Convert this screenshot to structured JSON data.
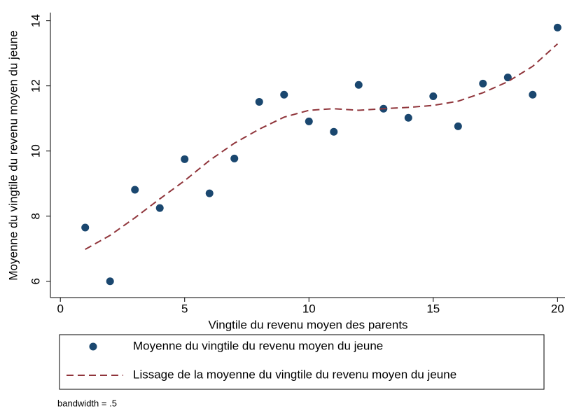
{
  "chart_data": {
    "type": "scatter",
    "xlabel": "Vingtile du revenu moyen des parents",
    "ylabel": "Moyenne du vingtile du revenu moyen du jeune",
    "note": "bandwidth = .5",
    "x": [
      1,
      2,
      3,
      4,
      5,
      6,
      7,
      8,
      9,
      10,
      11,
      12,
      13,
      14,
      15,
      16,
      17,
      18,
      19,
      20
    ],
    "series": [
      {
        "name": "Moyenne du vingtile du revenu moyen du jeune",
        "color": "#1a476f",
        "mode": "markers",
        "values": [
          7.65,
          6.0,
          8.81,
          8.25,
          9.75,
          8.7,
          9.77,
          11.51,
          11.73,
          10.91,
          10.59,
          12.03,
          11.3,
          11.02,
          11.68,
          10.76,
          12.07,
          12.26,
          11.73,
          13.79
        ]
      },
      {
        "name": "Lissage de la moyenne du vingtile du revenu moyen du jeune",
        "color": "#90353b",
        "mode": "dashed-line",
        "values": [
          6.98,
          7.41,
          7.95,
          8.53,
          9.09,
          9.71,
          10.24,
          10.67,
          11.04,
          11.25,
          11.3,
          11.25,
          11.3,
          11.34,
          11.4,
          11.53,
          11.79,
          12.13,
          12.6,
          13.29
        ]
      }
    ],
    "xlim": [
      -0.4,
      20.3
    ],
    "xticks": [
      0,
      5,
      10,
      15,
      20
    ],
    "ylim": [
      5.5,
      14.25
    ],
    "yticks": [
      6,
      8,
      10,
      12,
      14
    ],
    "grid": false,
    "legend": "bottom"
  }
}
